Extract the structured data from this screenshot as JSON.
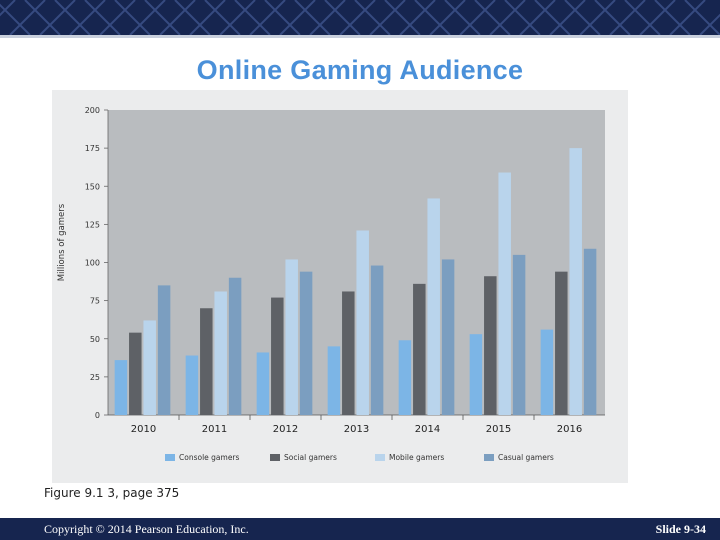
{
  "slide": {
    "title": "Online Gaming Audience",
    "caption": "Figure 9.1 3, page 375",
    "copyright": "Copyright © 2014 Pearson Education, Inc.",
    "slide_number": "Slide 9-34"
  },
  "colors": {
    "banner": "#16254f",
    "title": "#4a90d9",
    "plot_bg": "#b9bcbf",
    "panel_bg": "#ebeced"
  },
  "chart_data": {
    "type": "bar",
    "title": "",
    "xlabel": "",
    "ylabel": "Millions of gamers",
    "ylim": [
      0,
      200
    ],
    "yticks": [
      0,
      25,
      50,
      75,
      100,
      125,
      150,
      175,
      200
    ],
    "categories": [
      "2010",
      "2011",
      "2012",
      "2013",
      "2014",
      "2015",
      "2016"
    ],
    "legend_position": "bottom",
    "series": [
      {
        "name": "Console gamers",
        "color": "#7cb5e6",
        "values": [
          36,
          39,
          41,
          45,
          49,
          53,
          56
        ]
      },
      {
        "name": "Social gamers",
        "color": "#5e6166",
        "values": [
          54,
          70,
          77,
          81,
          86,
          91,
          94
        ]
      },
      {
        "name": "Mobile gamers",
        "color": "#b9d4ec",
        "values": [
          62,
          81,
          102,
          121,
          142,
          159,
          175
        ]
      },
      {
        "name": "Casual gamers",
        "color": "#7b9ec0",
        "values": [
          85,
          90,
          94,
          98,
          102,
          105,
          109
        ]
      }
    ]
  }
}
